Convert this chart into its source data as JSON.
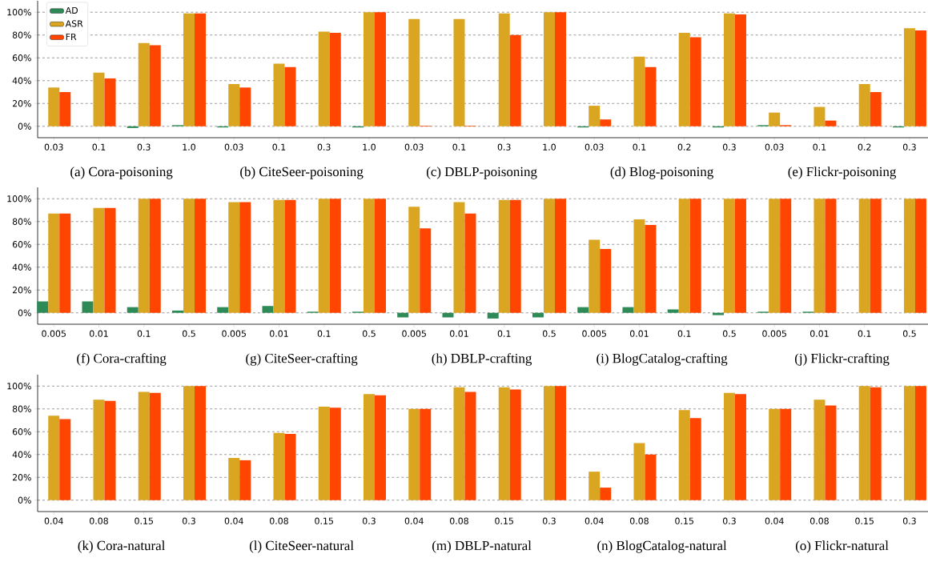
{
  "chart_data": [
    {
      "type": "bar",
      "categories": [
        "0.03",
        "0.1",
        "0.3",
        "1.0",
        "0.03",
        "0.1",
        "0.3",
        "1.0",
        "0.03",
        "0.1",
        "0.3",
        "1.0",
        "0.03",
        "0.1",
        "0.2",
        "0.3",
        "0.03",
        "0.1",
        "0.2",
        "0.3"
      ],
      "series": [
        {
          "name": "AD",
          "color": "#2e8b57",
          "values": [
            0,
            0,
            -1.5,
            1,
            -1,
            0,
            0,
            -1,
            0,
            0,
            0,
            0,
            -1,
            0,
            0,
            -1,
            1,
            0,
            0,
            -1
          ]
        },
        {
          "name": "ASR",
          "color": "#daa520",
          "values": [
            34,
            47,
            73,
            99,
            37,
            55,
            83,
            100,
            94,
            94,
            99,
            100,
            18,
            61,
            82,
            99,
            12,
            17,
            37,
            86
          ]
        },
        {
          "name": "FR",
          "color": "#ff4500",
          "values": [
            30,
            42,
            71,
            99,
            34,
            52,
            82,
            100,
            0.5,
            0.5,
            80,
            100,
            6,
            52,
            78,
            98,
            1,
            5,
            30,
            84
          ]
        }
      ],
      "ylim": [
        -10,
        110
      ],
      "yticks": [
        {
          "value": 0,
          "label": "0%"
        },
        {
          "value": 20,
          "label": "20%"
        },
        {
          "value": 40,
          "label": "40%"
        },
        {
          "value": 60,
          "label": "60%"
        },
        {
          "value": 80,
          "label": "80%"
        },
        {
          "value": 100,
          "label": "100%"
        }
      ],
      "grid": "y",
      "legend": "top left",
      "annotations": [
        "(a) Cora-poisoning",
        "(b) CiteSeer-poisoning",
        "(c) DBLP-poisoning",
        "(d) Blog-poisoning",
        "(e) Flickr-poisoning"
      ]
    },
    {
      "type": "bar",
      "categories": [
        "0.005",
        "0.01",
        "0.1",
        "0.5",
        "0.005",
        "0.01",
        "0.1",
        "0.5",
        "0.005",
        "0.01",
        "0.1",
        "0.5",
        "0.005",
        "0.01",
        "0.1",
        "0.5",
        "0.005",
        "0.01",
        "0.1",
        "0.5"
      ],
      "series": [
        {
          "color": "#2e8b57",
          "values": [
            10,
            10,
            5,
            2,
            5,
            6,
            1,
            1,
            -4,
            -4,
            -5,
            -4,
            5,
            5,
            3,
            -2,
            1,
            1,
            0,
            0
          ]
        },
        {
          "color": "#daa520",
          "values": [
            87,
            92,
            100,
            100,
            97,
            99,
            100,
            100,
            93,
            97,
            99,
            100,
            64,
            82,
            100,
            100,
            100,
            100,
            100,
            100
          ]
        },
        {
          "color": "#ff4500",
          "values": [
            87,
            92,
            100,
            100,
            97,
            99,
            100,
            100,
            74,
            87,
            99,
            100,
            56,
            77,
            100,
            100,
            100,
            100,
            100,
            100
          ]
        }
      ],
      "ylim": [
        -10,
        110
      ],
      "yticks": [
        {
          "value": 0,
          "label": "0%"
        },
        {
          "value": 20,
          "label": "20%"
        },
        {
          "value": 40,
          "label": "40%"
        },
        {
          "value": 60,
          "label": "60%"
        },
        {
          "value": 80,
          "label": "80%"
        },
        {
          "value": 100,
          "label": "100%"
        }
      ],
      "grid": "y",
      "annotations": [
        "(f) Cora-crafting",
        "(g) CiteSeer-crafting",
        "(h) DBLP-crafting",
        "(i) BlogCatalog-crafting",
        "(j) Flickr-crafting"
      ]
    },
    {
      "type": "bar",
      "categories": [
        "0.04",
        "0.08",
        "0.15",
        "0.3",
        "0.04",
        "0.08",
        "0.15",
        "0.3",
        "0.04",
        "0.08",
        "0.15",
        "0.3",
        "0.04",
        "0.08",
        "0.15",
        "0.3",
        "0.04",
        "0.08",
        "0.15",
        "0.3"
      ],
      "series": [
        {
          "color": "#2e8b57",
          "values": [
            0,
            0,
            0,
            0,
            0,
            0,
            0,
            0,
            0,
            0,
            0,
            0,
            0,
            0,
            0,
            0,
            0,
            0,
            0,
            0
          ]
        },
        {
          "color": "#daa520",
          "values": [
            74,
            88,
            95,
            100,
            37,
            59,
            82,
            93,
            80,
            99,
            99,
            100,
            25,
            50,
            79,
            94,
            80,
            88,
            100,
            100
          ]
        },
        {
          "color": "#ff4500",
          "values": [
            71,
            87,
            94,
            100,
            35,
            58,
            81,
            92,
            80,
            95,
            97,
            100,
            11,
            40,
            72,
            93,
            80,
            83,
            99,
            100
          ]
        }
      ],
      "ylim": [
        -10,
        110
      ],
      "yticks": [
        {
          "value": 0,
          "label": "0%"
        },
        {
          "value": 20,
          "label": "20%"
        },
        {
          "value": 40,
          "label": "40%"
        },
        {
          "value": 60,
          "label": "60%"
        },
        {
          "value": 80,
          "label": "80%"
        },
        {
          "value": 100,
          "label": "100%"
        }
      ],
      "grid": "y",
      "annotations": [
        "(k) Cora-natural",
        "(l) CiteSeer-natural",
        "(m) DBLP-natural",
        "(n) BlogCatalog-natural",
        "(o) Flickr-natural"
      ]
    }
  ]
}
